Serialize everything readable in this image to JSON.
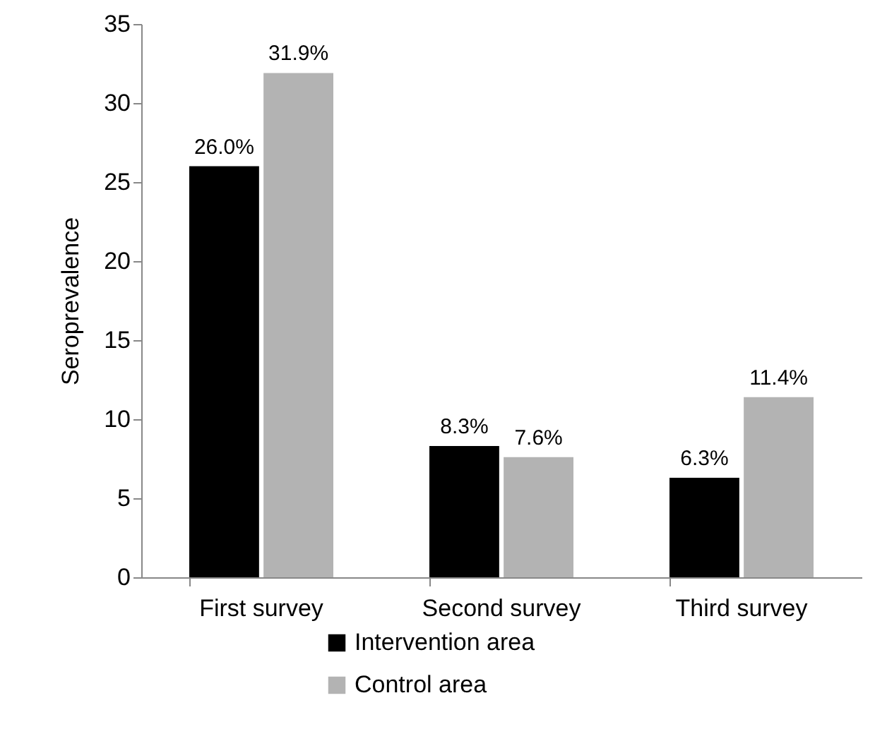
{
  "chart_data": {
    "type": "bar",
    "ylabel": "Seroprevalence",
    "categories": [
      "First survey",
      "Second survey",
      "Third survey"
    ],
    "series": [
      {
        "name": "Intervention area",
        "color": "#000000",
        "values": [
          26.0,
          8.3,
          6.3
        ],
        "value_labels": [
          "26.0%",
          "8.3%",
          "6.3%"
        ]
      },
      {
        "name": "Control area",
        "color": "#b3b3b3",
        "values": [
          31.9,
          7.6,
          11.4
        ],
        "value_labels": [
          "31.9%",
          "7.6%",
          "11.4%"
        ]
      }
    ],
    "ylim": [
      0,
      35
    ],
    "yticks": [
      0,
      5,
      10,
      15,
      20,
      25,
      30,
      35
    ],
    "grid": false,
    "legend": "bottom"
  }
}
